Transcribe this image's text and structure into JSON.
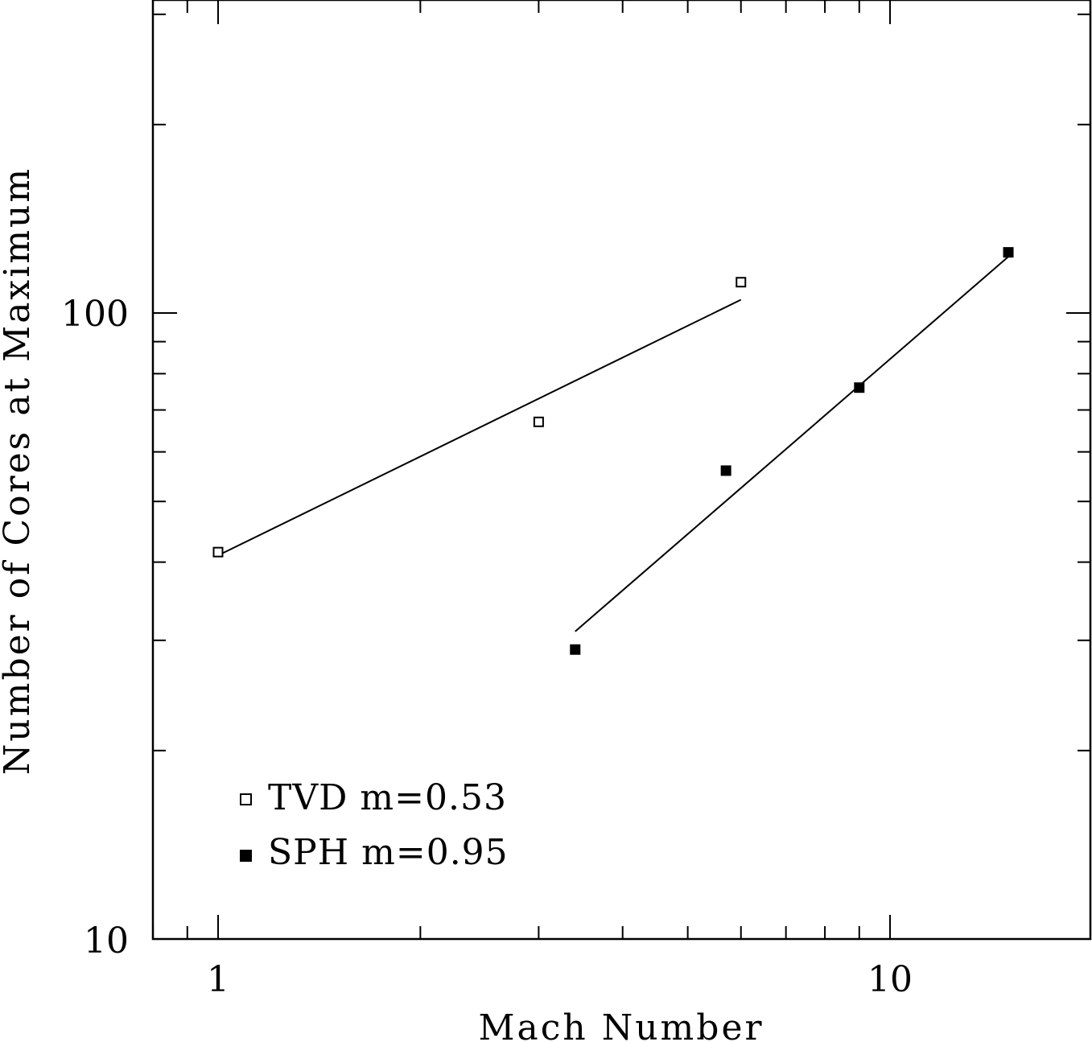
{
  "chart_data": {
    "type": "scatter",
    "xlabel": "Mach Number",
    "ylabel": "Number of Cores at Maximum",
    "x_scale": "log",
    "y_scale": "log",
    "xlim": [
      0.79,
      20.0
    ],
    "ylim": [
      10,
      300
    ],
    "x_tick_labels": [
      "1",
      "10"
    ],
    "y_tick_labels": [
      "10",
      "100"
    ],
    "grid": false,
    "legend_position": "bottom-left",
    "series": [
      {
        "name": "TVD m=0.53",
        "marker": "open-square",
        "points": [
          {
            "x": 1.0,
            "y": 41.5
          },
          {
            "x": 3.0,
            "y": 67
          },
          {
            "x": 6.0,
            "y": 112
          }
        ],
        "fit": {
          "x": [
            1.0,
            6.0
          ],
          "y": [
            41,
            105
          ]
        }
      },
      {
        "name": "SPH m=0.95",
        "marker": "filled-square",
        "points": [
          {
            "x": 3.4,
            "y": 29
          },
          {
            "x": 5.7,
            "y": 56
          },
          {
            "x": 9.0,
            "y": 76
          },
          {
            "x": 15.0,
            "y": 125
          }
        ],
        "fit": {
          "x": [
            3.4,
            15.0
          ],
          "y": [
            31,
            123
          ]
        }
      }
    ]
  }
}
